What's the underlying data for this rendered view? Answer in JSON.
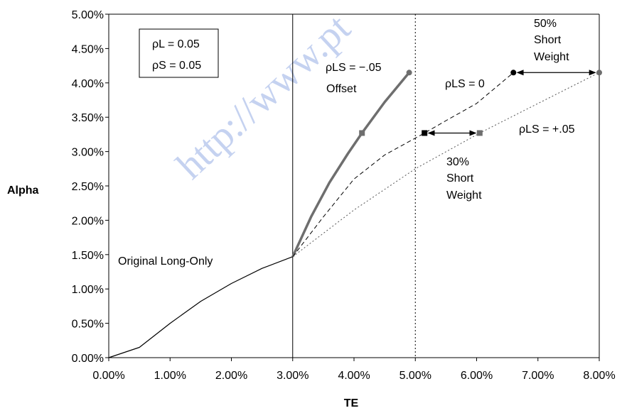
{
  "chart_data": {
    "type": "line",
    "xlabel": "TE",
    "ylabel": "Alpha",
    "xlim": [
      0,
      8
    ],
    "ylim": [
      0,
      5
    ],
    "x_ticks": [
      "0.00%",
      "1.00%",
      "2.00%",
      "3.00%",
      "4.00%",
      "5.00%",
      "6.00%",
      "7.00%",
      "8.00%"
    ],
    "y_ticks": [
      "0.00%",
      "0.50%",
      "1.00%",
      "1.50%",
      "2.00%",
      "2.50%",
      "3.00%",
      "3.50%",
      "4.00%",
      "4.50%",
      "5.00%"
    ],
    "series": [
      {
        "name": "Original  Long-Only",
        "style": "solid-thin",
        "points": [
          [
            0,
            0
          ],
          [
            0.5,
            0.15
          ],
          [
            1,
            0.5
          ],
          [
            1.5,
            0.82
          ],
          [
            2,
            1.08
          ],
          [
            2.5,
            1.3
          ],
          [
            3,
            1.47
          ]
        ]
      },
      {
        "name": "ρLS = −.05 Offset",
        "style": "solid-thick",
        "points": [
          [
            3,
            1.47
          ],
          [
            3.3,
            2.05
          ],
          [
            3.6,
            2.55
          ],
          [
            3.9,
            2.97
          ],
          [
            4.13,
            3.27
          ],
          [
            4.5,
            3.72
          ],
          [
            4.9,
            4.15
          ]
        ]
      },
      {
        "name": "ρLS = 0",
        "style": "dashed",
        "points": [
          [
            3,
            1.47
          ],
          [
            3.5,
            2.05
          ],
          [
            4,
            2.6
          ],
          [
            4.5,
            2.95
          ],
          [
            5.15,
            3.27
          ],
          [
            5.5,
            3.45
          ],
          [
            6,
            3.7
          ],
          [
            6.6,
            4.15
          ]
        ]
      },
      {
        "name": "ρLS = +.05",
        "style": "dotted",
        "points": [
          [
            3,
            1.47
          ],
          [
            4,
            2.15
          ],
          [
            5,
            2.75
          ],
          [
            6.05,
            3.27
          ],
          [
            7,
            3.7
          ],
          [
            8,
            4.15
          ]
        ]
      }
    ],
    "markers": [
      {
        "x": 4.9,
        "y": 4.15,
        "shape": "circle",
        "color": "#6e6e6e"
      },
      {
        "x": 4.13,
        "y": 3.27,
        "shape": "square",
        "color": "#6e6e6e"
      },
      {
        "x": 6.6,
        "y": 4.15,
        "shape": "circle",
        "color": "#000000"
      },
      {
        "x": 5.15,
        "y": 3.27,
        "shape": "square",
        "color": "#000000"
      },
      {
        "x": 8.0,
        "y": 4.15,
        "shape": "circle",
        "color": "#6e6e6e"
      },
      {
        "x": 6.05,
        "y": 3.27,
        "shape": "square",
        "color": "#6e6e6e"
      }
    ],
    "reference_lines": [
      {
        "x": 3,
        "style": "solid"
      },
      {
        "x": 5,
        "style": "dotted"
      }
    ],
    "arrows": [
      {
        "from": [
          6.65,
          4.15
        ],
        "to": [
          7.95,
          4.15
        ]
      },
      {
        "from": [
          5.2,
          3.27
        ],
        "to": [
          6.0,
          3.27
        ]
      }
    ],
    "legend_box": {
      "line1": "ρL = 0.05",
      "line2": "ρS = 0.05"
    },
    "annotations": {
      "offset_rho": "ρLS = −.05",
      "offset_word": "Offset",
      "rho_zero": "ρLS = 0",
      "rho_plus": "ρLS = +.05",
      "short50": [
        "50%",
        "Short",
        "Weight"
      ],
      "short30": [
        "30%",
        "Short",
        "Weight"
      ],
      "original": "Original  Long-Only"
    },
    "colors": {
      "thick_series": "#6e6e6e",
      "line": "#000000",
      "watermark": "#5b7fd6"
    },
    "watermark": "http://www.pt"
  }
}
